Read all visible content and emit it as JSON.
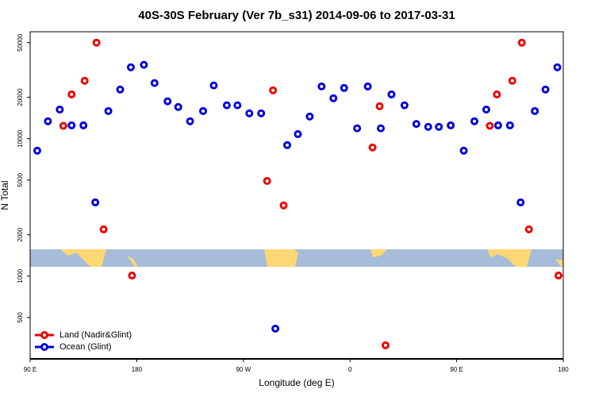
{
  "chart_data": {
    "type": "scatter",
    "title": "40S-30S February (Ver 7b_s31)   2014-09-06 to 2017-03-31",
    "x_label": "Longitude (deg E)",
    "y_label": "N Total",
    "log_y": true,
    "grid": false,
    "legend": "lower left",
    "xlim": [
      90,
      540
    ],
    "xticks": [
      {
        "value": 90,
        "label": "90 E"
      },
      180,
      {
        "value": 270,
        "label": "90 W"
      },
      {
        "value": 360,
        "label": "0"
      },
      {
        "value": 450,
        "label": "90 E"
      },
      {
        "value": 540,
        "label": "180"
      }
    ],
    "ylim": [
      250,
      60000
    ],
    "yticks": [
      500,
      1000,
      2000,
      5000,
      10000,
      20000,
      50000
    ],
    "series": [
      {
        "name": "Land (Nadir&Glint)",
        "color": "#ee0000",
        "x": [
          118,
          125,
          136,
          146,
          152,
          176,
          290,
          295,
          304,
          379,
          385,
          390,
          478,
          484,
          497,
          505,
          511,
          536
        ],
        "values": [
          12400,
          21000,
          26400,
          50000,
          2190,
          1010,
          4930,
          22500,
          3270,
          8630,
          17250,
          314,
          12400,
          21000,
          26400,
          50000,
          2190,
          1010
        ]
      },
      {
        "name": "Ocean (Glint)",
        "color": "#0000dd",
        "x": [
          96,
          105,
          115,
          125,
          135,
          145,
          156,
          166,
          175,
          186,
          195,
          206,
          215,
          225,
          236,
          245,
          256,
          265,
          275,
          285,
          297,
          307,
          316,
          326,
          336,
          346,
          355,
          366,
          375,
          386,
          395,
          406,
          416,
          426,
          435,
          445,
          456,
          465,
          475,
          485,
          495,
          504,
          516,
          525,
          535
        ],
        "values": [
          8180,
          13400,
          16300,
          12500,
          12500,
          3440,
          15900,
          22800,
          33100,
          34500,
          25400,
          18700,
          17000,
          13400,
          15900,
          24400,
          17500,
          17500,
          15300,
          15300,
          415,
          8980,
          10800,
          14500,
          24000,
          19700,
          23400,
          11900,
          24000,
          11900,
          21000,
          17500,
          12800,
          12200,
          12200,
          12500,
          8180,
          13400,
          16300,
          12500,
          12500,
          3440,
          15900,
          22800,
          33100
        ]
      }
    ]
  }
}
